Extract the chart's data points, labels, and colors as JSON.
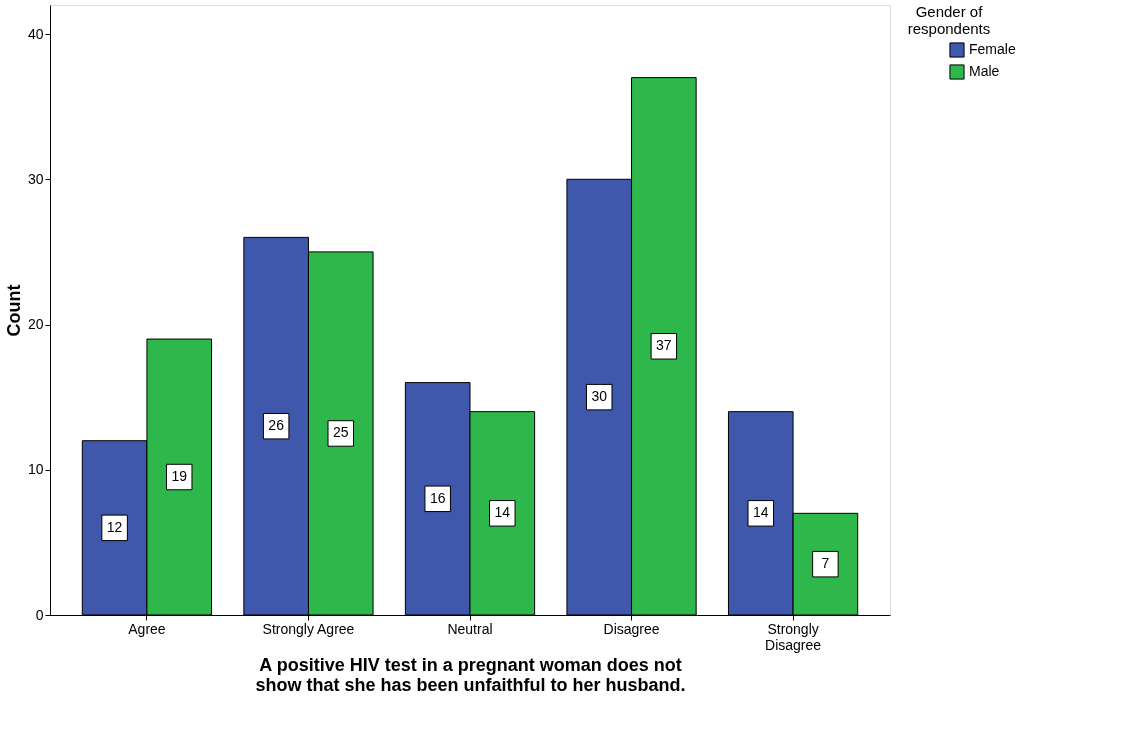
{
  "chart_data": {
    "type": "bar",
    "ylabel": "Count",
    "xlabel": "A positive HIV test in a pregnant woman does not\nshow that she has been unfaithful to her husband.",
    "legend_title": "Gender of\nrespondents",
    "legend": "top right",
    "categories": [
      "Agree",
      "Strongly Agree",
      "Neutral",
      "Disagree",
      "Strongly Disagree"
    ],
    "series": [
      {
        "name": "Female",
        "color": "#3f58ab",
        "values": [
          12,
          26,
          16,
          30,
          14
        ]
      },
      {
        "name": "Male",
        "color": "#2eb84b",
        "values": [
          19,
          25,
          14,
          37,
          7
        ]
      }
    ],
    "ylim": [
      0,
      42
    ],
    "yticks": [
      0,
      10,
      20,
      30,
      40
    ],
    "grid": false,
    "data_labels": true
  }
}
